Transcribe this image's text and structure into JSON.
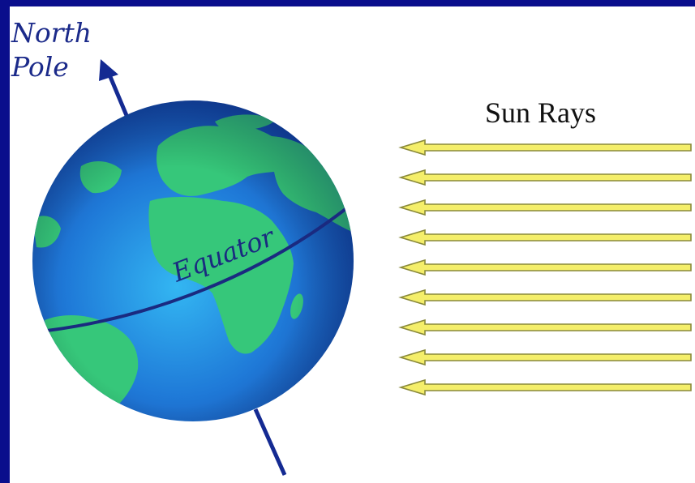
{
  "diagram": {
    "pole_label_line1": "North",
    "pole_label_line2": "Pole",
    "equator_label": "Equator",
    "sun_rays_label": "Sun Rays",
    "arrow_count": 9
  },
  "colors": {
    "slide_background": "#0a0e8c",
    "canvas": "#ffffff",
    "ocean": "#1f6fd0",
    "land": "#36c77a",
    "axis": "#142a92",
    "ray_fill": "#f4ee6a",
    "ray_outline": "#8a8a3a"
  },
  "icons": {
    "axis_arrow": "arrow-up-icon",
    "ray_arrow": "arrow-left-icon"
  }
}
